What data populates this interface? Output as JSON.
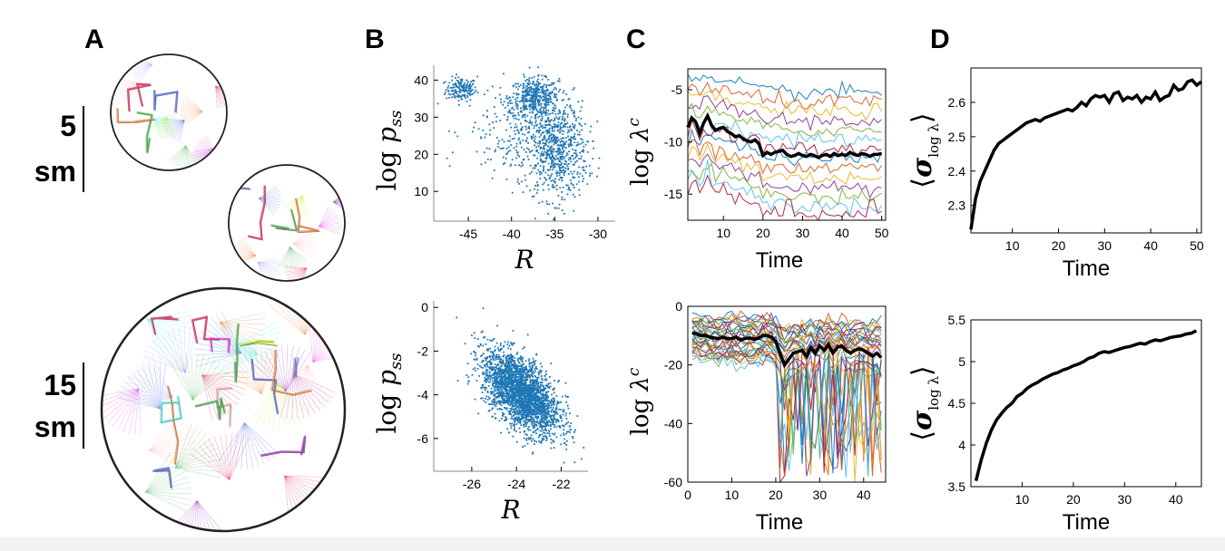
{
  "panels": {
    "A": {
      "label": "A",
      "rows": [
        {
          "number": "5",
          "unit": "sm"
        },
        {
          "number": "15",
          "unit": "sm"
        }
      ]
    },
    "B": {
      "label": "B"
    },
    "C": {
      "label": "C"
    },
    "D": {
      "label": "D"
    }
  },
  "colors": {
    "scatter": "#1f77b4",
    "mean_line": "#000000",
    "traces": [
      "#0072bd",
      "#d95319",
      "#edb120",
      "#7e2f8e",
      "#77ac30",
      "#4dbeee",
      "#a2142f"
    ]
  },
  "chart_data": [
    {
      "id": "B-top",
      "type": "scatter",
      "xlabel": "R",
      "ylabel_main": "log",
      "ylabel_sym": "p",
      "ylabel_sub": "ss",
      "xlim": [
        -49,
        -28
      ],
      "ylim": [
        2,
        44
      ],
      "xticks": [
        -45,
        -40,
        -35,
        -30
      ],
      "xticklabels": [
        "-45",
        "-40",
        "-35",
        "-30"
      ],
      "yticks": [
        10,
        20,
        30,
        40
      ],
      "yticklabels": [
        "10",
        "20",
        "30",
        "40"
      ],
      "clusters": [
        {
          "cx": -45.8,
          "cy": 37.5,
          "sx": 0.9,
          "sy": 1.6,
          "n": 160
        },
        {
          "cx": -37.3,
          "cy": 35.5,
          "sx": 1.4,
          "sy": 2.4,
          "n": 420
        },
        {
          "cx": -34.8,
          "cy": 21,
          "sx": 1.8,
          "sy": 6.5,
          "n": 700
        },
        {
          "cx": -39.5,
          "cy": 26,
          "sx": 3,
          "sy": 6,
          "n": 220
        }
      ]
    },
    {
      "id": "B-bottom",
      "type": "scatter",
      "xlabel": "R",
      "ylabel_main": "log",
      "ylabel_sym": "p",
      "ylabel_sub": "ss",
      "xlim": [
        -27.7,
        -20.8
      ],
      "ylim": [
        -7.5,
        0.3
      ],
      "xticks": [
        -26,
        -24,
        -22
      ],
      "xticklabels": [
        "-26",
        "-24",
        "-22"
      ],
      "yticks": [
        0,
        -2,
        -4,
        -6
      ],
      "yticklabels": [
        "0",
        "-2",
        "-4",
        "-6"
      ],
      "clusters": [
        {
          "cx": -23.8,
          "cy": -3.9,
          "sx": 0.85,
          "sy": 0.95,
          "n": 2600,
          "corr": -0.55
        }
      ]
    },
    {
      "id": "C-top",
      "type": "line",
      "xlabel": "Time",
      "ylabel_main": "log",
      "ylabel_sym": "λ",
      "ylabel_sup": "c",
      "xlim": [
        1,
        51
      ],
      "ylim": [
        -17.5,
        -3
      ],
      "xticks": [
        10,
        20,
        30,
        40,
        50
      ],
      "xticklabels": [
        "10",
        "20",
        "30",
        "40",
        "50"
      ],
      "yticks": [
        -5,
        -10,
        -15
      ],
      "yticklabels": [
        "-5",
        "-10",
        "-15"
      ],
      "n_traces": 14,
      "trace_top": -4.2,
      "trace_bottom": -14.5,
      "mean": [
        -8.6,
        -7.7,
        -8.1,
        -9.2,
        -8.2,
        -7.5,
        -8.4,
        -8.9,
        -8.7,
        -8.6,
        -9,
        -9.2,
        -9.5,
        -9.4,
        -9.7,
        -9.9,
        -10,
        -9.8,
        -10.2,
        -11.3,
        -11,
        -11.2,
        -11,
        -10.9,
        -10.8,
        -11.2,
        -11.4,
        -11.3,
        -11.1,
        -11.3,
        -11.4,
        -11.2,
        -11.3,
        -11.5,
        -11.3,
        -11.2,
        -11.4,
        -11.1,
        -11.3,
        -11.2,
        -11.3,
        -11,
        -11.2,
        -11.3,
        -11.1,
        -11.2,
        -11.4,
        -11.2,
        -11.2,
        -11.1
      ]
    },
    {
      "id": "C-bottom",
      "type": "line",
      "xlabel": "Time",
      "ylabel_main": "log",
      "ylabel_sym": "λ",
      "ylabel_sup": "c",
      "xlim": [
        0,
        45
      ],
      "ylim": [
        -60,
        0
      ],
      "xticks": [
        0,
        10,
        20,
        30,
        40
      ],
      "xticklabels": [
        "0",
        "10",
        "20",
        "30",
        "40"
      ],
      "yticks": [
        0,
        -20,
        -40,
        -60
      ],
      "yticklabels": [
        "0",
        "-20",
        "-40",
        "-60"
      ],
      "n_traces": 34,
      "trace_top": -3,
      "trace_bottom": -17,
      "mean": [
        -9,
        -9.5,
        -10,
        -10,
        -10.5,
        -10.8,
        -11,
        -10.5,
        -11,
        -11,
        -10.5,
        -11.5,
        -11,
        -10.8,
        -11.2,
        -11,
        -10,
        -10,
        -10.5,
        -12,
        -16,
        -20,
        -18,
        -16,
        -15.5,
        -15,
        -17,
        -14,
        -16,
        -13.5,
        -15,
        -13,
        -16,
        -14,
        -13.5,
        -15,
        -16,
        -15,
        -14.5,
        -15,
        -16,
        -17,
        -16,
        -17.5
      ]
    },
    {
      "id": "D-top",
      "type": "line",
      "xlabel": "Time",
      "ylabel_sym": "σ",
      "ylabel_sub": "log λ",
      "xlim": [
        1,
        51
      ],
      "ylim": [
        2.22,
        2.7
      ],
      "xticks": [
        10,
        20,
        30,
        40,
        50
      ],
      "xticklabels": [
        "10",
        "20",
        "30",
        "40",
        "50"
      ],
      "yticks": [
        2.3,
        2.4,
        2.5,
        2.6
      ],
      "yticklabels": [
        "2.3",
        "2.4",
        "2.5",
        "2.6"
      ],
      "x": [
        1,
        2,
        3,
        4,
        5,
        6,
        7,
        8,
        9,
        10,
        11,
        12,
        13,
        14,
        15,
        16,
        17,
        18,
        19,
        20,
        21,
        22,
        23,
        24,
        25,
        26,
        27,
        28,
        29,
        30,
        31,
        32,
        33,
        34,
        35,
        36,
        37,
        38,
        39,
        40,
        41,
        42,
        43,
        44,
        45,
        46,
        47,
        48,
        49,
        50,
        51
      ],
      "values": [
        2.23,
        2.32,
        2.37,
        2.4,
        2.43,
        2.46,
        2.48,
        2.49,
        2.5,
        2.51,
        2.52,
        2.53,
        2.54,
        2.545,
        2.55,
        2.545,
        2.555,
        2.56,
        2.565,
        2.57,
        2.575,
        2.58,
        2.575,
        2.585,
        2.6,
        2.59,
        2.61,
        2.62,
        2.615,
        2.62,
        2.6,
        2.625,
        2.63,
        2.605,
        2.615,
        2.61,
        2.62,
        2.6,
        2.615,
        2.61,
        2.63,
        2.605,
        2.615,
        2.62,
        2.65,
        2.635,
        2.64,
        2.66,
        2.665,
        2.65,
        2.66
      ]
    },
    {
      "id": "D-bottom",
      "type": "line",
      "xlabel": "Time",
      "ylabel_sym": "σ",
      "ylabel_sub": "log λ",
      "xlim": [
        0,
        45
      ],
      "ylim": [
        3.5,
        5.5
      ],
      "xticks": [
        10,
        20,
        30,
        40
      ],
      "xticklabels": [
        "10",
        "20",
        "30",
        "40"
      ],
      "yticks": [
        3.5,
        4,
        4.5,
        5,
        5.5
      ],
      "yticklabels": [
        "3.5",
        "4",
        "4.5",
        "5",
        "5.5"
      ],
      "x": [
        1,
        2,
        3,
        4,
        5,
        6,
        7,
        8,
        9,
        10,
        11,
        12,
        13,
        14,
        15,
        16,
        17,
        18,
        19,
        20,
        21,
        22,
        23,
        24,
        25,
        26,
        27,
        28,
        29,
        30,
        31,
        32,
        33,
        34,
        35,
        36,
        37,
        38,
        39,
        40,
        41,
        42,
        43,
        44
      ],
      "values": [
        3.57,
        3.82,
        4.02,
        4.18,
        4.3,
        4.38,
        4.45,
        4.5,
        4.58,
        4.62,
        4.68,
        4.72,
        4.75,
        4.79,
        4.82,
        4.85,
        4.87,
        4.9,
        4.92,
        4.95,
        4.97,
        5.0,
        5.04,
        5.06,
        5.1,
        5.12,
        5.11,
        5.13,
        5.15,
        5.17,
        5.18,
        5.2,
        5.22,
        5.21,
        5.24,
        5.26,
        5.25,
        5.27,
        5.29,
        5.3,
        5.31,
        5.33,
        5.34,
        5.37
      ]
    }
  ]
}
